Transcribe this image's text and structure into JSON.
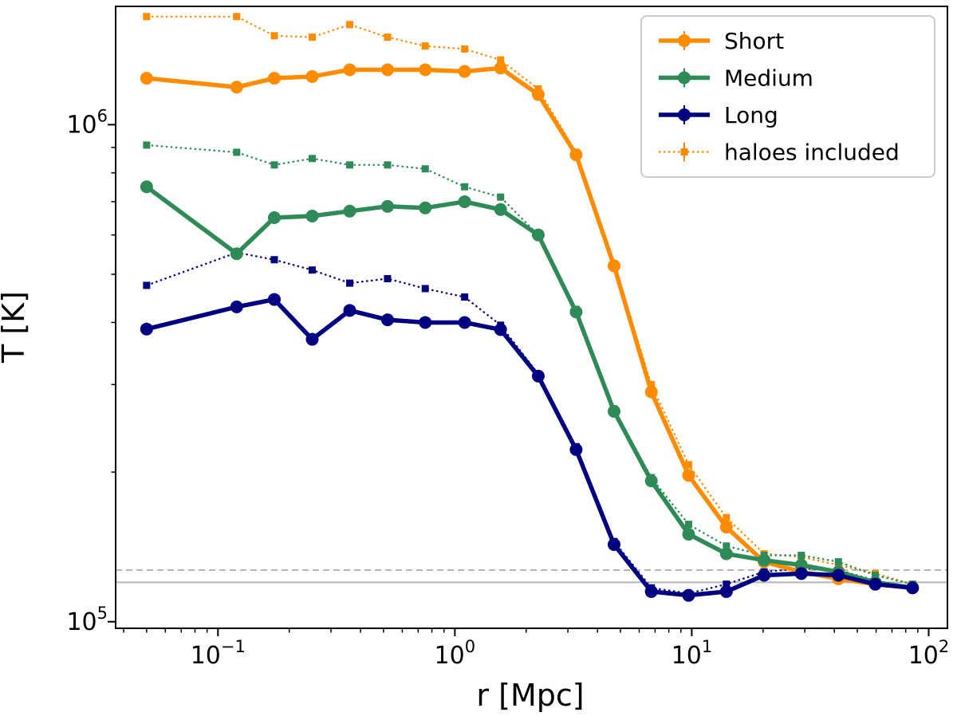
{
  "chart_data": {
    "type": "line",
    "title": "",
    "xlabel": "r [Mpc]",
    "ylabel": "T [K]",
    "xscale": "log",
    "yscale": "log",
    "xlim": [
      0.037,
      120
    ],
    "ylim": [
      97000,
      1730000
    ],
    "xticks": [
      {
        "value": 0.1,
        "base": "10",
        "exp": "−1"
      },
      {
        "value": 1,
        "base": "10",
        "exp": "0"
      },
      {
        "value": 10,
        "base": "10",
        "exp": "1"
      },
      {
        "value": 100,
        "base": "10",
        "exp": "2"
      }
    ],
    "yticks": [
      {
        "value": 100000,
        "base": "10",
        "exp": "5"
      },
      {
        "value": 1000000,
        "base": "10",
        "exp": "6"
      }
    ],
    "x": [
      0.05,
      0.12,
      0.173,
      0.25,
      0.36,
      0.52,
      0.75,
      1.1,
      1.56,
      2.25,
      3.25,
      4.7,
      6.75,
      9.7,
      14,
      20.2,
      29,
      41.6,
      59.5,
      85.5
    ],
    "series": [
      {
        "name": "Short",
        "color": "#ff8c00",
        "style": "solid",
        "values": [
          1240000,
          1190000,
          1240000,
          1250000,
          1290000,
          1290000,
          1290000,
          1280000,
          1300000,
          1150000,
          870000,
          520000,
          290000,
          197000,
          155000,
          132000,
          126000,
          122000,
          119000,
          117000
        ]
      },
      {
        "name": "Medium",
        "color": "#2e8b57",
        "style": "solid",
        "values": [
          750000,
          550000,
          650000,
          655000,
          670000,
          685000,
          680000,
          700000,
          675000,
          600000,
          420000,
          265000,
          192000,
          150000,
          137000,
          133000,
          130000,
          126000,
          120000,
          117000
        ]
      },
      {
        "name": "Long",
        "color": "#000080",
        "style": "solid",
        "values": [
          388000,
          430000,
          445000,
          370000,
          423000,
          405000,
          400000,
          400000,
          387000,
          312000,
          222000,
          143000,
          115000,
          113000,
          115000,
          124000,
          125000,
          124000,
          119000,
          117000
        ]
      },
      {
        "name": "Short (haloes included)",
        "color": "#ff8c00",
        "style": "dotted",
        "values": [
          1650000,
          1650000,
          1510000,
          1500000,
          1590000,
          1500000,
          1440000,
          1420000,
          1350000,
          1180000,
          880000,
          525000,
          300000,
          207000,
          162000,
          137000,
          135000,
          130000,
          125000,
          119000
        ]
      },
      {
        "name": "Medium (haloes included)",
        "color": "#2e8b57",
        "style": "dotted",
        "values": [
          910000,
          880000,
          830000,
          855000,
          830000,
          830000,
          815000,
          750000,
          715000,
          600000,
          425000,
          268000,
          195000,
          157000,
          142000,
          136000,
          136000,
          132000,
          124000,
          119000
        ]
      },
      {
        "name": "Long (haloes included)",
        "color": "#000080",
        "style": "dotted",
        "values": [
          475000,
          553000,
          535000,
          510000,
          480000,
          490000,
          468000,
          450000,
          395000,
          315000,
          225000,
          145000,
          117000,
          114000,
          119000,
          126000,
          128000,
          127000,
          121000,
          117000
        ]
      }
    ],
    "reference_lines": [
      {
        "value": 127000,
        "style": "dashed",
        "color": "#b4b4b4"
      },
      {
        "value": 120000,
        "style": "solid",
        "color": "#b4b4b4"
      }
    ],
    "legend": {
      "position": "top-right",
      "entries": [
        {
          "label": "Short",
          "color": "#ff8c00",
          "style": "solid"
        },
        {
          "label": "Medium",
          "color": "#2e8b57",
          "style": "solid"
        },
        {
          "label": "Long",
          "color": "#000080",
          "style": "solid"
        },
        {
          "label": "haloes included",
          "color": "#ff8c00",
          "style": "dotted"
        }
      ]
    }
  }
}
